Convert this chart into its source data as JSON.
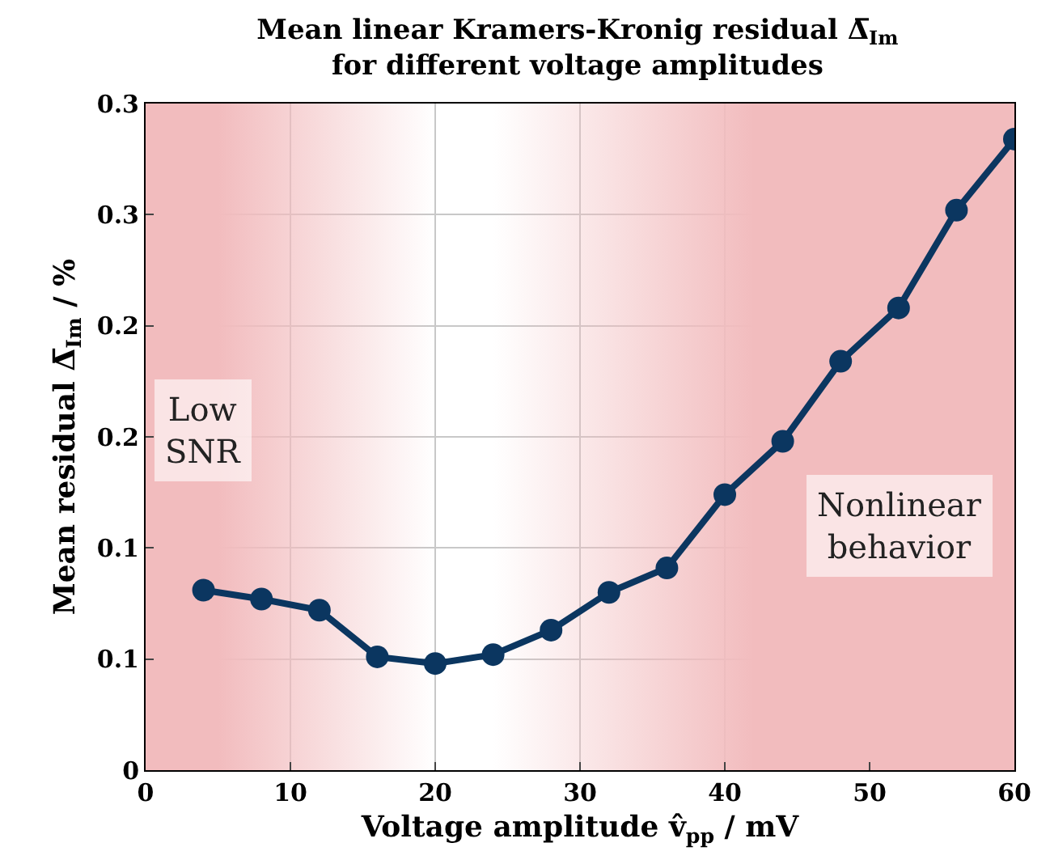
{
  "chart_data": {
    "type": "line",
    "title": "Mean linear Kramers-Kronig residual Δ̅$_{Im}$\nfor different voltage amplitudes",
    "xlabel": "Voltage amplitude v̂$_{pp}$ / mV",
    "ylabel": "Mean residual Δ̅$_{Im}$ / %",
    "x": [
      4,
      8,
      12,
      16,
      20,
      24,
      28,
      32,
      36,
      40,
      44,
      48,
      52,
      56,
      60
    ],
    "series": [
      {
        "color": "#0b3660",
        "values": [
          0.081,
          0.077,
          0.072,
          0.051,
          0.048,
          0.052,
          0.063,
          0.08,
          0.091,
          0.124,
          0.148,
          0.184,
          0.208,
          0.252,
          0.284
        ]
      }
    ],
    "xlim": [
      0,
      60
    ],
    "xticks": [
      0,
      10,
      20,
      30,
      40,
      50,
      60
    ],
    "ylim": [
      0,
      0.3
    ],
    "yticks": [
      0,
      {
        "value": 0.05,
        "label": "0.1"
      },
      0.1,
      {
        "value": 0.15,
        "label": "0.2"
      },
      0.2,
      {
        "value": 0.25,
        "label": "0.3"
      },
      0.3
    ],
    "bands": [
      {
        "axis": "x",
        "from": 0,
        "to": 20,
        "label": "Low\nSNR",
        "color": "#f2bcbe"
      },
      {
        "axis": "x",
        "from": 24,
        "to": 60,
        "label": "Nonlinear\nbehavior",
        "color": "#f2bcbe"
      }
    ],
    "grid": true,
    "marker": "circle",
    "line_style": "solid"
  }
}
